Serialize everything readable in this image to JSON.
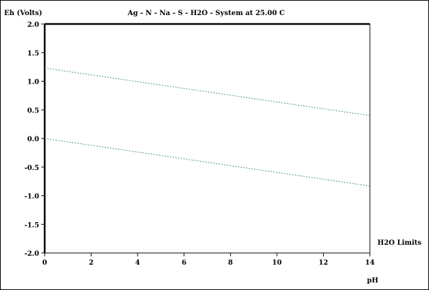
{
  "chart_data": {
    "type": "line",
    "title": "Ag - N - Na - S - H2O - System at 25.00 C",
    "ylabel": "Eh (Volts)",
    "xlabel": "pH",
    "xlim": [
      0,
      14
    ],
    "ylim": [
      -2.0,
      2.0
    ],
    "xticks": [
      "0",
      "2",
      "4",
      "6",
      "8",
      "10",
      "12",
      "14"
    ],
    "yticks": [
      "2.0",
      "1.5",
      "1.0",
      "0.5",
      "0.0",
      "-0.5",
      "-1.0",
      "-1.5",
      "-2.0"
    ],
    "grid": false,
    "legend_label": "H2O Limits",
    "series": [
      {
        "name": "H2O Limits",
        "color": "#4a8f8f",
        "style": "dashed",
        "x": [
          0,
          14
        ],
        "y": [
          0.0,
          -0.83
        ]
      },
      {
        "name": "H2O Limits",
        "color": "#4a8f8f",
        "style": "dashed",
        "x": [
          0,
          14
        ],
        "y": [
          1.23,
          0.4
        ]
      }
    ]
  }
}
